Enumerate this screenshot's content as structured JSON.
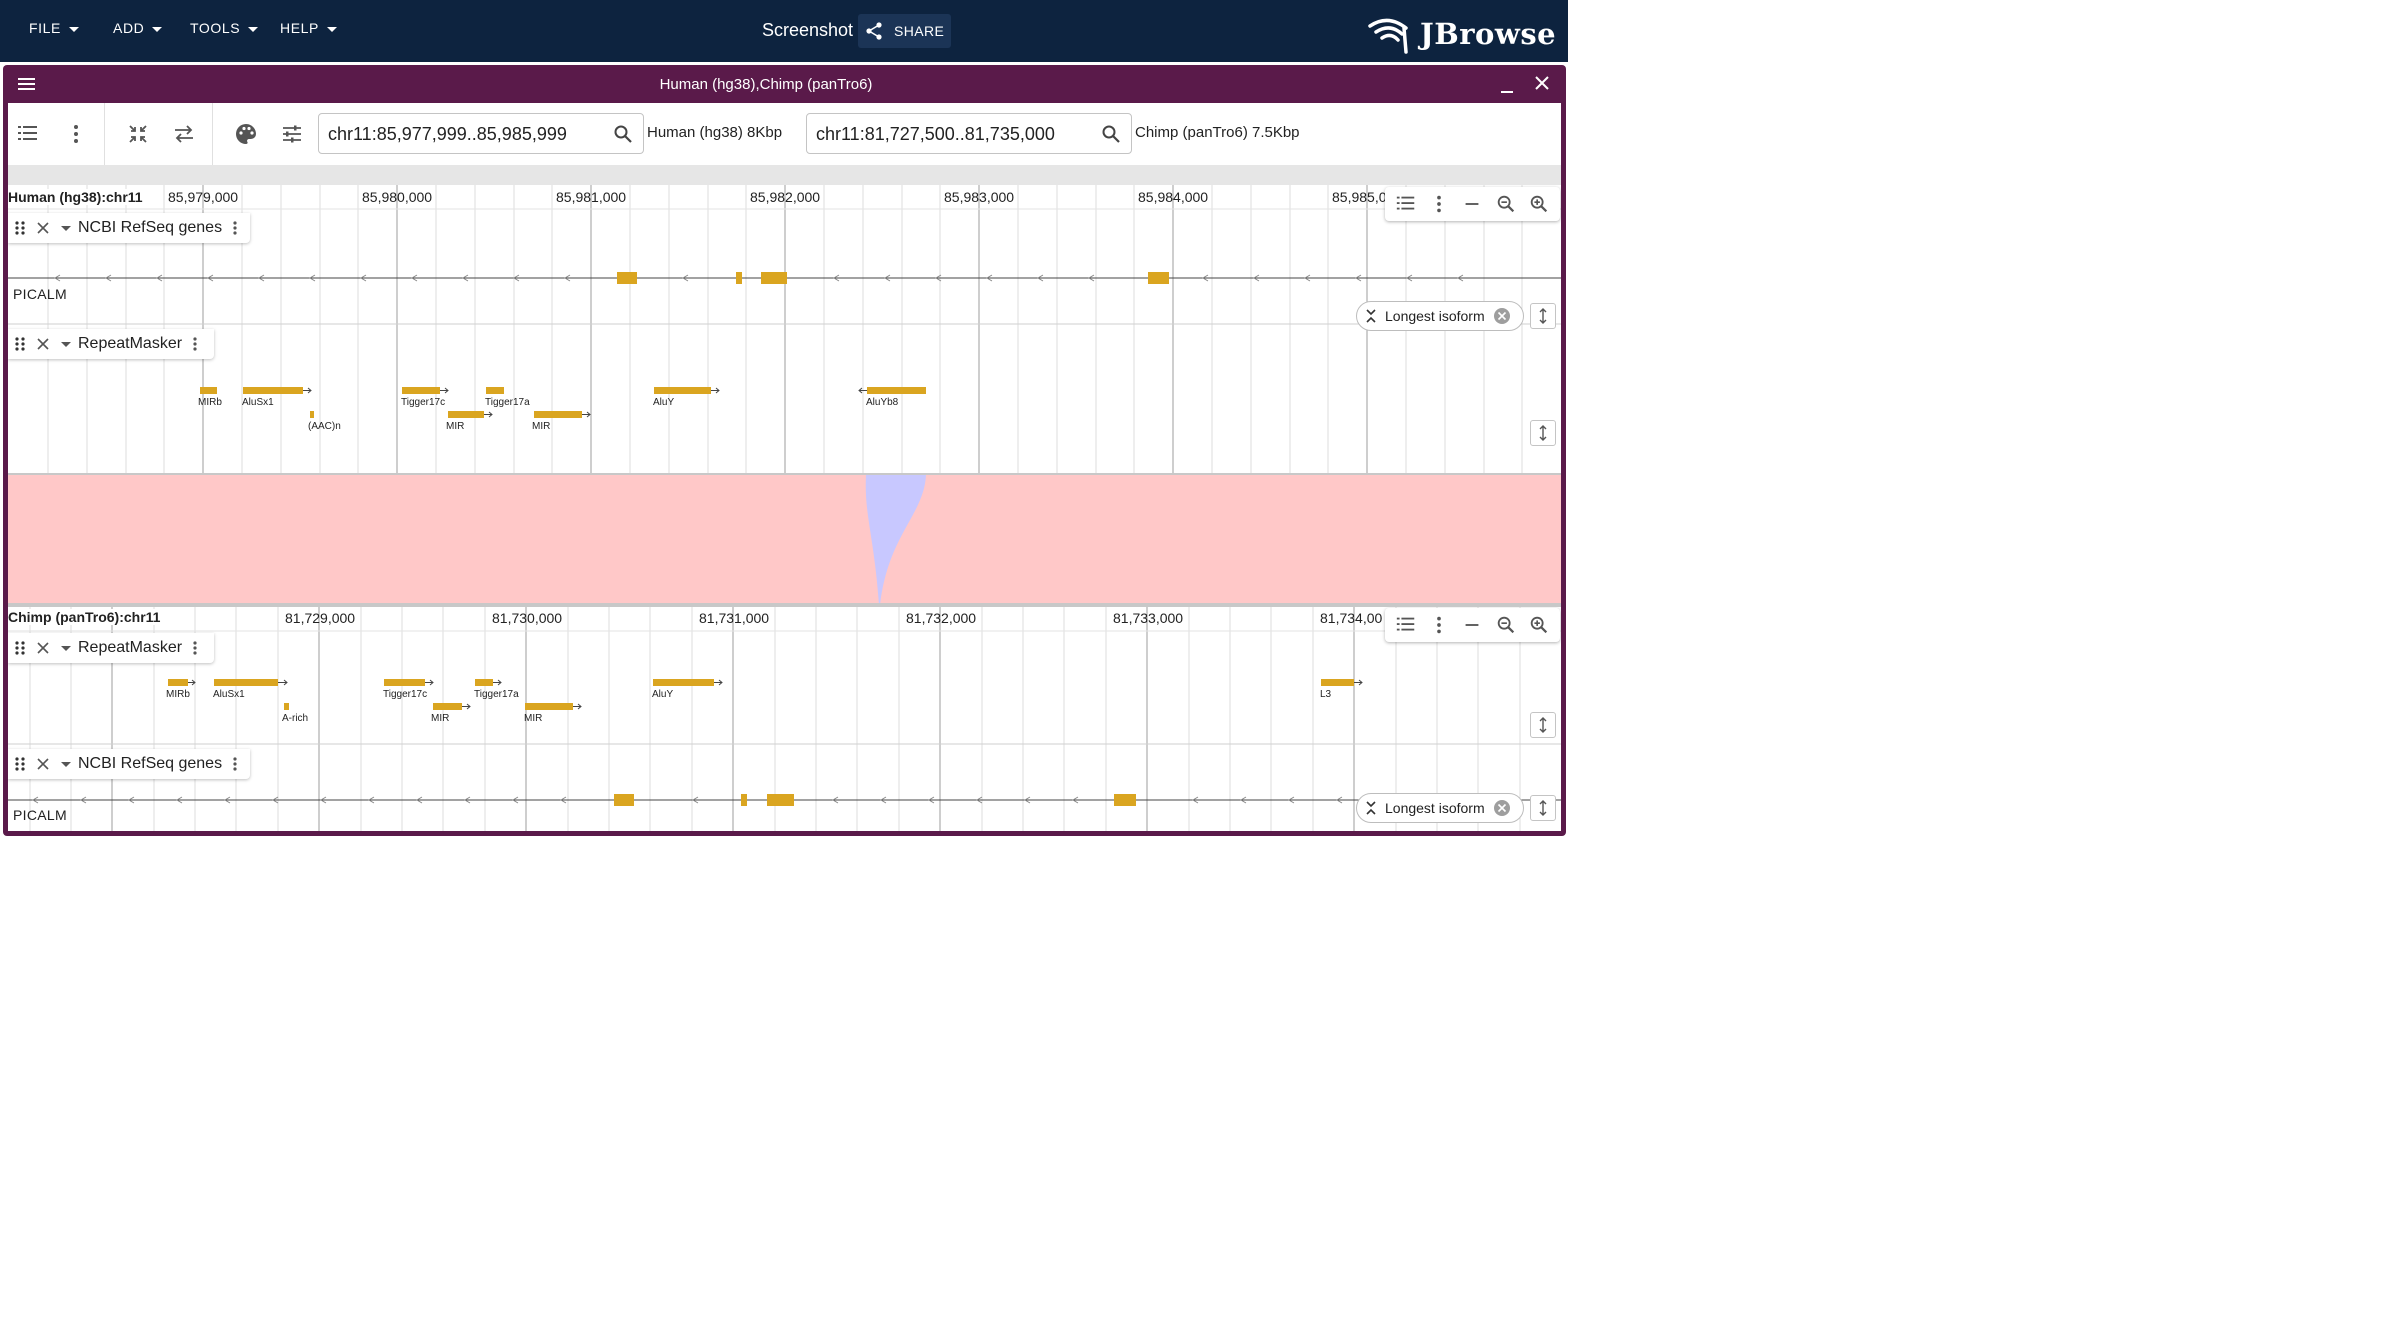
{
  "menubar": {
    "items": [
      {
        "label": "FILE"
      },
      {
        "label": "ADD"
      },
      {
        "label": "TOOLS"
      },
      {
        "label": "HELP"
      }
    ],
    "session_title": "Screenshot",
    "share_label": "SHARE",
    "logo_text": "JBrowse"
  },
  "view": {
    "title": "Human (hg38),Chimp (panTro6)"
  },
  "toolbar": {
    "human_locstring": "chr11:85,977,999..85,985,999",
    "human_label": "Human (hg38) 8Kbp",
    "chimp_locstring": "chr11:81,727,500..81,735,000",
    "chimp_label": "Chimp (panTro6) 7.5Kbp"
  },
  "human": {
    "ruler_title": "Human (hg38):chr11",
    "ticks": [
      "85,979,000",
      "85,980,000",
      "85,981,000",
      "85,982,000",
      "85,983,000",
      "85,984,000",
      "85,985,0"
    ],
    "tracks": {
      "refseq": {
        "name": "NCBI RefSeq genes",
        "gene_label": "PICALM",
        "chip_label": "Longest isoform"
      },
      "repeatmasker": {
        "name": "RepeatMasker",
        "features": [
          "MIRb",
          "AluSx1",
          "(AAC)n",
          "Tigger17c",
          "MIR",
          "Tigger17a",
          "MIR",
          "AluY",
          "AluYb8"
        ]
      }
    }
  },
  "chimp": {
    "ruler_title": "Chimp (panTro6):chr11",
    "ticks": [
      "81,729,000",
      "81,730,000",
      "81,731,000",
      "81,732,000",
      "81,733,000",
      "81,734,00"
    ],
    "tracks": {
      "repeatmasker": {
        "name": "RepeatMasker",
        "features": [
          "MIRb",
          "AluSx1",
          "A-rich",
          "Tigger17c",
          "MIR",
          "Tigger17a",
          "MIR",
          "AluY",
          "L3"
        ]
      },
      "refseq": {
        "name": "NCBI RefSeq genes",
        "gene_label": "PICALM",
        "chip_label": "Longest isoform"
      }
    }
  },
  "colors": {
    "appbar": "#0d233f",
    "view_frame": "#5a1a4a",
    "feature": "#daa520",
    "synteny_forward": "#ffc8c8",
    "synteny_inverted": "#c8c8ff"
  }
}
